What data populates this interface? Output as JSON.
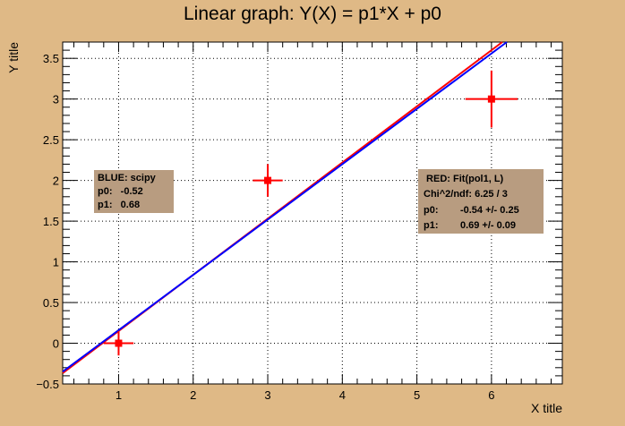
{
  "chart_data": {
    "type": "scatter",
    "title": "Linear graph: Y(X) = p1*X + p0",
    "xlabel": "X title",
    "ylabel": "Y title",
    "xlim": [
      0.25,
      6.95
    ],
    "ylim": [
      -0.5,
      3.7
    ],
    "grid": true,
    "x_ticks": [
      1,
      2,
      3,
      4,
      5,
      6
    ],
    "x_tick_labels": [
      "1",
      "2",
      "3",
      "4",
      "5",
      "6"
    ],
    "y_ticks": [
      -0.5,
      0,
      0.5,
      1,
      1.5,
      2,
      2.5,
      3,
      3.5
    ],
    "y_tick_labels": [
      "−0.5",
      "0",
      "0.5",
      "1",
      "1.5",
      "2",
      "2.5",
      "3",
      "3.5"
    ],
    "series": [
      {
        "kind": "points",
        "color": "#ff0000",
        "points": [
          {
            "x": 1,
            "y": 0,
            "xerr": 0.2,
            "yerr": 0.15
          },
          {
            "x": 3,
            "y": 2,
            "xerr": 0.2,
            "yerr": 0.2
          },
          {
            "x": 6,
            "y": 3,
            "xerr": 0.35,
            "yerr": 0.35
          }
        ]
      },
      {
        "kind": "line",
        "color": "#ff0000",
        "p0": -0.54,
        "p1": 0.69
      },
      {
        "kind": "line",
        "color": "#0000ff",
        "p0": -0.52,
        "p1": 0.68
      }
    ],
    "annotations": {
      "blue_box": {
        "lines": [
          "BLUE: scipy",
          "p0:   -0.52",
          "p1:   0.68"
        ],
        "placement": "left"
      },
      "red_box": {
        "lines": [
          " RED: Fit(pol1, L)",
          "Chi^2/ndf: 6.25 / 3",
          "p0:        -0.54 +/- 0.25",
          "p1:        0.69 +/- 0.09"
        ],
        "placement": "right"
      }
    }
  },
  "colors": {
    "background": "#dfb986",
    "plot_area": "#ffffff",
    "stats_box": "#b89c80",
    "red": "#ff0000",
    "blue": "#0000ff"
  }
}
